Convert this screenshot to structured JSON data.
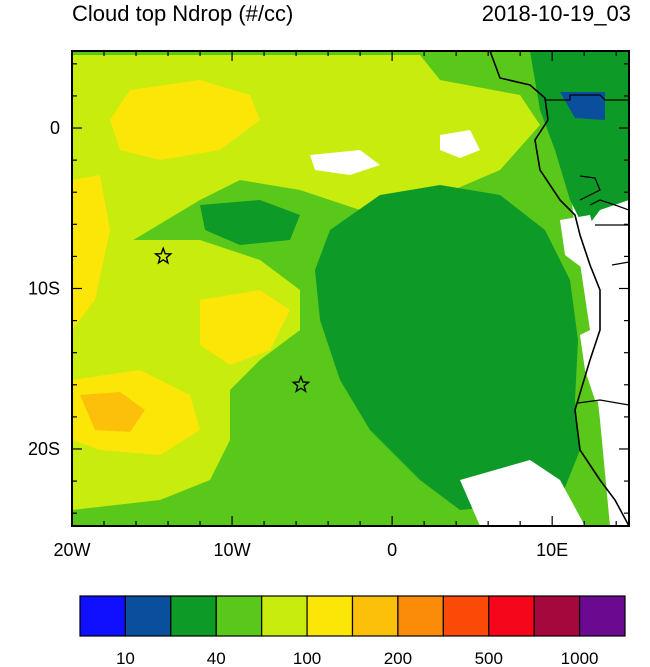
{
  "title": {
    "left": "Cloud top Ndrop (#/cc)",
    "right": "2018-10-19_03"
  },
  "map": {
    "lon_range": [
      -20,
      14.8
    ],
    "lat_range": [
      -24.8,
      4.8
    ],
    "x_ticks": [
      {
        "lon": -20,
        "label": "20W"
      },
      {
        "lon": -10,
        "label": "10W"
      },
      {
        "lon": 0,
        "label": "0"
      },
      {
        "lon": 10,
        "label": "10E"
      }
    ],
    "y_ticks": [
      {
        "lat": 0,
        "label": "0"
      },
      {
        "lat": -10,
        "label": "10S"
      },
      {
        "lat": -20,
        "label": "20S"
      }
    ],
    "markers": [
      {
        "name": "star-marker-northwest",
        "lon": -14.3,
        "lat": -8.0
      },
      {
        "name": "star-marker-south",
        "lon": -5.7,
        "lat": -16.0
      }
    ]
  },
  "colorbar": {
    "colors": [
      "#1010ff",
      "#0a4f9e",
      "#0e9a26",
      "#5ac81a",
      "#c8ec0e",
      "#fce608",
      "#fcc00a",
      "#fb8c0a",
      "#fb4a08",
      "#f5061a",
      "#a5083c",
      "#6b0a91"
    ],
    "labels": [
      {
        "index": 1,
        "text": "10"
      },
      {
        "index": 3,
        "text": "40"
      },
      {
        "index": 5,
        "text": "100"
      },
      {
        "index": 7,
        "text": "200"
      },
      {
        "index": 9,
        "text": "500"
      },
      {
        "index": 11,
        "text": "1000"
      }
    ]
  }
}
